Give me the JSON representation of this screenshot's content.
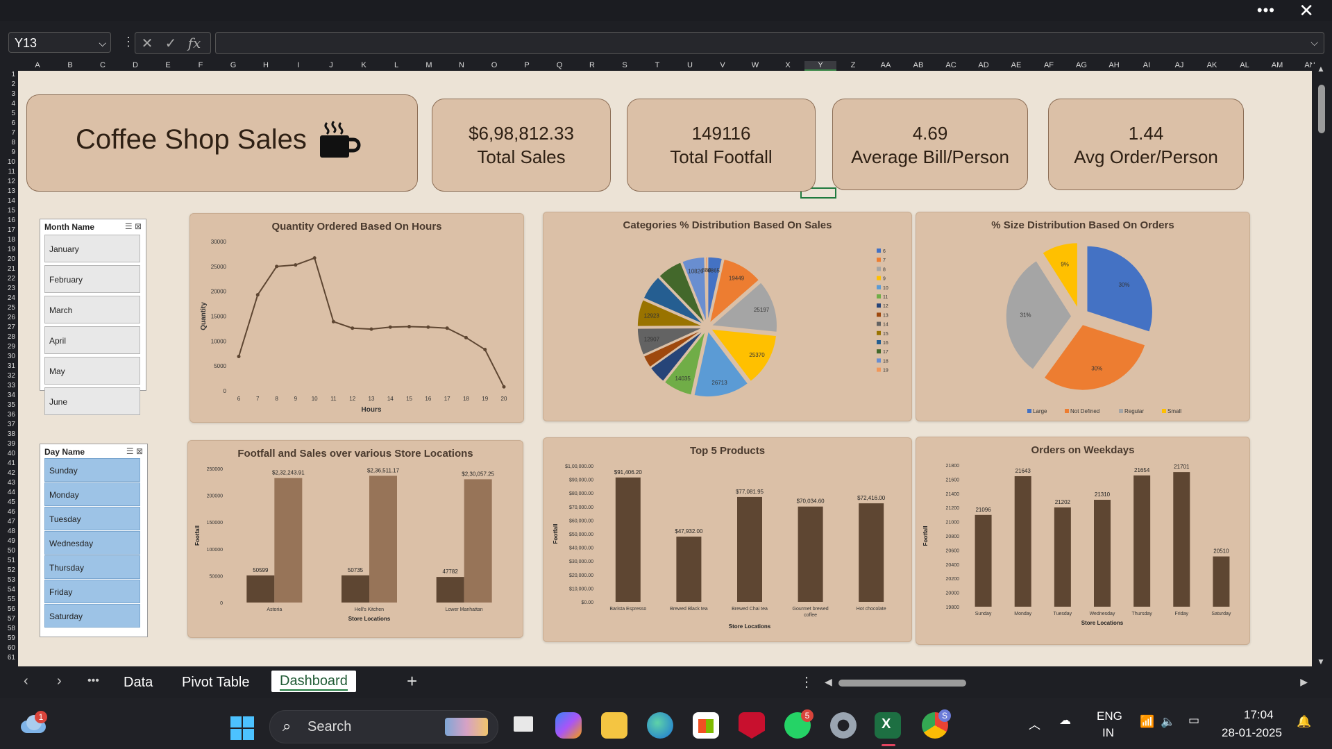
{
  "formula_bar": {
    "cell_ref": "Y13",
    "fx_label": "fx",
    "formula": ""
  },
  "columns": [
    "A",
    "B",
    "C",
    "D",
    "E",
    "F",
    "G",
    "H",
    "I",
    "J",
    "K",
    "L",
    "M",
    "N",
    "O",
    "P",
    "Q",
    "R",
    "S",
    "T",
    "U",
    "V",
    "W",
    "X",
    "Y",
    "Z",
    "AA",
    "AB",
    "AC",
    "AD",
    "AE",
    "AF",
    "AG",
    "AH",
    "AI",
    "AJ",
    "AK",
    "AL",
    "AM",
    "AN"
  ],
  "selected_column": "Y",
  "rows": [
    "1",
    "2",
    "3",
    "4",
    "5",
    "6",
    "7",
    "8",
    "9",
    "10",
    "11",
    "12",
    "13",
    "14",
    "15",
    "16",
    "17",
    "18",
    "19",
    "20",
    "21",
    "22",
    "23",
    "24",
    "25",
    "26",
    "27",
    "28",
    "29",
    "30",
    "31",
    "32",
    "33",
    "34",
    "35",
    "36",
    "37",
    "38",
    "39",
    "40",
    "41",
    "42",
    "43",
    "44",
    "45",
    "46",
    "47",
    "48",
    "49",
    "50",
    "51",
    "52",
    "53",
    "54",
    "55",
    "56",
    "57",
    "58",
    "59",
    "60",
    "61"
  ],
  "dashboard": {
    "title": "Coffee Shop Sales",
    "kpis": [
      {
        "value": "$6,98,812.33",
        "label": "Total Sales"
      },
      {
        "value": "149116",
        "label": "Total Footfall"
      },
      {
        "value": "4.69",
        "label": "Average Bill/Person"
      },
      {
        "value": "1.44",
        "label": "Avg Order/Person"
      }
    ]
  },
  "month_slicer": {
    "title": "Month Name",
    "items": [
      "January",
      "February",
      "March",
      "April",
      "May",
      "June"
    ]
  },
  "day_slicer": {
    "title": "Day Name",
    "items": [
      "Sunday",
      "Monday",
      "Tuesday",
      "Wednesday",
      "Thursday",
      "Friday",
      "Saturday"
    ]
  },
  "colors": {
    "bar": "#5e4632",
    "bar_light": "#977458",
    "line": "#5e4632",
    "card": "#dbc0a7",
    "sheet": "#ece3d6"
  },
  "chart_data": [
    {
      "type": "line",
      "title": "Quantity Ordered  Based On Hours",
      "xlabel": "Hours",
      "ylabel": "Quantity",
      "x": [
        6,
        7,
        8,
        9,
        10,
        11,
        12,
        13,
        14,
        15,
        16,
        17,
        18,
        19,
        20
      ],
      "values": [
        6900,
        19300,
        25000,
        25300,
        26700,
        13900,
        12600,
        12400,
        12800,
        12900,
        12800,
        12600,
        10700,
        8300,
        800
      ],
      "ylim": [
        0,
        30000
      ],
      "yticks": [
        "30000",
        "25000",
        "20000",
        "15000",
        "10000",
        "5000",
        "0"
      ]
    },
    {
      "type": "pie",
      "title": "Categories % Distribution Based On Sales",
      "labels": [
        "6",
        "7",
        "8",
        "9",
        "10",
        "11",
        "12",
        "13",
        "14",
        "15",
        "16",
        "17",
        "18",
        "19"
      ],
      "values": [
        6865,
        19449,
        25197,
        25370,
        26713,
        14035,
        8599,
        6000,
        12907,
        12923,
        12000,
        12000,
        10826,
        880
      ],
      "value_labels": [
        "6865",
        "19449",
        "25197",
        "25370",
        "26713",
        "14035",
        "",
        "",
        "12907",
        "12923",
        "",
        "",
        "10826",
        "880"
      ],
      "colors": [
        "#4472c4",
        "#ed7d31",
        "#a5a5a5",
        "#ffc000",
        "#5b9bd5",
        "#70ad47",
        "#264478",
        "#9e480e",
        "#636363",
        "#997300",
        "#255e91",
        "#43682b",
        "#698ed0",
        "#f1975a"
      ],
      "legend_position": "right"
    },
    {
      "type": "pie",
      "title": "% Size Distribution Based On Orders",
      "labels": [
        "Large",
        "Not Defined",
        "Regular",
        "Small"
      ],
      "values": [
        30,
        30,
        31,
        9
      ],
      "value_labels": [
        "30%",
        "30%",
        "31%",
        "9%"
      ],
      "colors": [
        "#4472c4",
        "#ed7d31",
        "#a5a5a5",
        "#ffc000"
      ],
      "legend_position": "bottom"
    },
    {
      "type": "bar",
      "title": "Footfall and Sales over various Store Locations",
      "xlabel": "Store Locations",
      "ylabel": "Footfall",
      "categories": [
        "Astoria",
        "Hell's Kitchen",
        "Lower Manhattan"
      ],
      "series": [
        {
          "values": [
            50599,
            50735,
            47782
          ],
          "labels": [
            "50599",
            "50735",
            "47782"
          ]
        },
        {
          "values": [
            232243.91,
            236511.17,
            230057.25
          ],
          "labels": [
            "$2,32,243.91",
            "$2,36,511.17",
            "$2,30,057.25"
          ]
        }
      ],
      "ylim": [
        0,
        250000
      ],
      "yticks": [
        "250000",
        "200000",
        "150000",
        "100000",
        "50000",
        "0"
      ]
    },
    {
      "type": "bar",
      "title": "Top 5 Products",
      "xlabel": "Store Locations",
      "ylabel": "Footfall",
      "categories": [
        "Barista Espresso",
        "Brewed Black tea",
        "Brewed Chai tea",
        "Gourmet brewed coffee",
        "Hot chocolate"
      ],
      "values": [
        91406.2,
        47932.0,
        77081.95,
        70034.6,
        72416.0
      ],
      "value_labels": [
        "$91,406.20",
        "$47,932.00",
        "$77,081.95",
        "$70,034.60",
        "$72,416.00"
      ],
      "ylim": [
        0,
        100000
      ],
      "yticks": [
        "$1,00,000.00",
        "$90,000.00",
        "$80,000.00",
        "$70,000.00",
        "$60,000.00",
        "$50,000.00",
        "$40,000.00",
        "$30,000.00",
        "$20,000.00",
        "$10,000.00",
        "$0.00"
      ]
    },
    {
      "type": "bar",
      "title": "Orders on Weekdays",
      "xlabel": "Store Locations",
      "ylabel": "Footfall",
      "categories": [
        "Sunday",
        "Monday",
        "Tuesday",
        "Wednesday",
        "Thursday",
        "Friday",
        "Saturday"
      ],
      "values": [
        21096,
        21643,
        21202,
        21310,
        21654,
        21701,
        20510
      ],
      "ylim": [
        19800,
        21800
      ],
      "yticks": [
        "21800",
        "21600",
        "21400",
        "21200",
        "21000",
        "20800",
        "20600",
        "20400",
        "20200",
        "20000",
        "19800"
      ]
    }
  ],
  "sheet_tabs": [
    "Data",
    "Pivot Table",
    "Dashboard"
  ],
  "active_tab": "Dashboard",
  "taskbar": {
    "search_placeholder": "Search",
    "weather_badge": "1",
    "whatsapp_badge": "5",
    "chrome_badge": "S",
    "lang_top": "ENG",
    "lang_bottom": "IN",
    "time": "17:04",
    "date": "28-01-2025"
  }
}
